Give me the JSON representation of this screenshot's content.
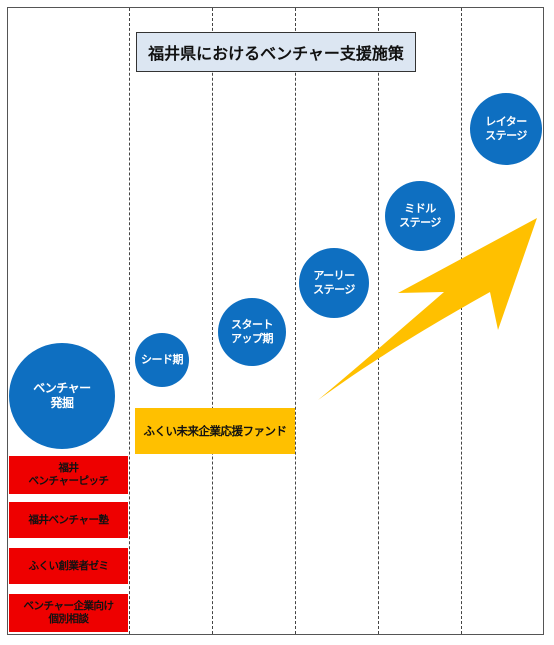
{
  "title": "福井県におけるベンチャー支援施策",
  "stages": [
    {
      "label": "ベンチャー\n発掘"
    },
    {
      "label": "シード期"
    },
    {
      "label": "スタート\nアップ期"
    },
    {
      "label": "アーリー\nステージ"
    },
    {
      "label": "ミドル\nステージ"
    },
    {
      "label": "レイター\nステージ"
    }
  ],
  "fund_label": "ふくい未来企業応援ファンド",
  "support_programs": [
    {
      "label": "福井\nベンチャーピッチ"
    },
    {
      "label": "福井ベンチャー塾"
    },
    {
      "label": "ふくい創業者ゼミ"
    },
    {
      "label": "ベンチャー企業向け\n個別相談"
    }
  ],
  "colors": {
    "circle": "#0e6fc1",
    "arrow": "#ffc000",
    "fund": "#ffc000",
    "program": "#ee0000",
    "title_bg": "#dce6f2"
  }
}
